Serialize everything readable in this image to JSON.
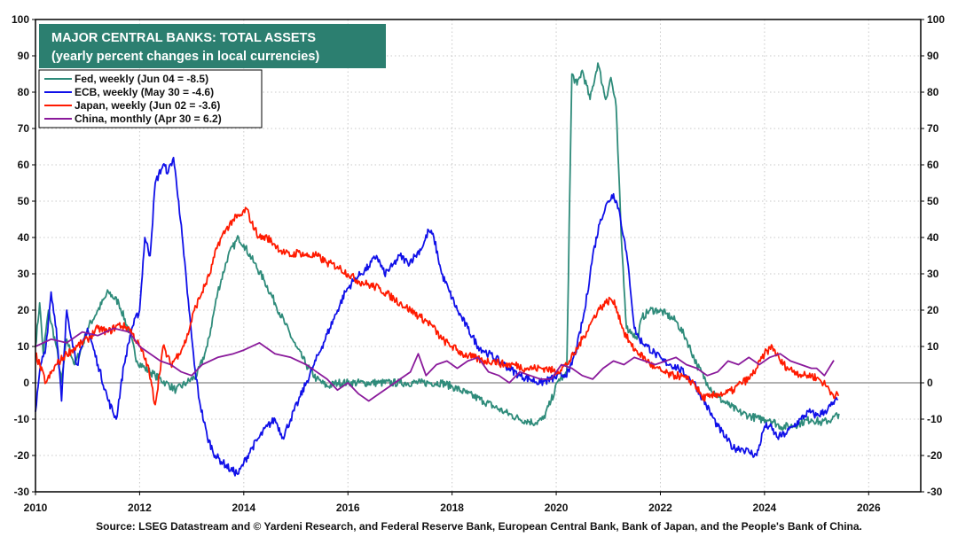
{
  "chart_data": {
    "type": "line",
    "title": "MAJOR CENTRAL BANKS: TOTAL ASSETS",
    "subtitle": "(yearly percent changes in local currencies)",
    "xlabel": "",
    "ylabel": "",
    "xlim": [
      2010,
      2027
    ],
    "ylim": [
      -30,
      100
    ],
    "x_ticks": [
      "2010",
      "2012",
      "2014",
      "2016",
      "2018",
      "2020",
      "2022",
      "2024",
      "2026"
    ],
    "y_ticks": [
      "-30",
      "-20",
      "-10",
      "0",
      "10",
      "20",
      "30",
      "40",
      "50",
      "60",
      "70",
      "80",
      "90",
      "100"
    ],
    "grid": true,
    "legend_position": "top-left",
    "source": "Source: LSEG Datastream and © Yardeni Research, and Federal Reserve Bank, European Central Bank, Bank of Japan, and the People's Bank of China.",
    "series": [
      {
        "name": "Fed, weekly (Jun 04 = -8.5)",
        "color": "#2e8b7a",
        "x": [
          2010.0,
          2010.08,
          2010.15,
          2010.25,
          2010.4,
          2010.5,
          2010.6,
          2010.75,
          2010.9,
          2011.0,
          2011.2,
          2011.4,
          2011.6,
          2011.8,
          2011.95,
          2012.1,
          2012.3,
          2012.5,
          2012.7,
          2012.9,
          2013.1,
          2013.3,
          2013.5,
          2013.7,
          2013.9,
          2014.0,
          2014.2,
          2014.4,
          2014.6,
          2014.8,
          2015.0,
          2015.2,
          2015.4,
          2015.6,
          2015.8,
          2016.0,
          2016.3,
          2016.6,
          2017.0,
          2017.4,
          2017.8,
          2018.0,
          2018.3,
          2018.6,
          2019.0,
          2019.3,
          2019.6,
          2019.75,
          2019.9,
          2020.05,
          2020.2,
          2020.3,
          2020.4,
          2020.5,
          2020.65,
          2020.8,
          2020.95,
          2021.05,
          2021.15,
          2021.25,
          2021.35,
          2021.45,
          2021.55,
          2021.65,
          2021.8,
          2021.95,
          2022.1,
          2022.3,
          2022.5,
          2022.7,
          2022.9,
          2023.1,
          2023.3,
          2023.5,
          2023.7,
          2023.9,
          2024.1,
          2024.3,
          2024.5,
          2024.7,
          2024.9,
          2025.1,
          2025.3,
          2025.43
        ],
        "values": [
          10,
          22,
          8,
          20,
          10,
          0,
          12,
          5,
          10,
          15,
          20,
          25,
          22,
          14,
          6,
          4,
          2,
          0,
          -2,
          0,
          2,
          10,
          25,
          35,
          40,
          38,
          33,
          28,
          22,
          16,
          10,
          5,
          1,
          -1,
          0,
          0,
          0,
          0,
          0,
          0,
          0,
          -1,
          -3,
          -5,
          -8,
          -10,
          -11,
          -10,
          -5,
          1,
          2,
          85,
          82,
          86,
          78,
          88,
          78,
          84,
          76,
          40,
          15,
          14,
          12,
          18,
          20,
          20,
          19,
          17,
          12,
          5,
          0,
          -4,
          -6,
          -8,
          -9,
          -10,
          -10,
          -12,
          -12,
          -11,
          -10,
          -11,
          -10,
          -8.5
        ]
      },
      {
        "name": "ECB, weekly (May 30 = -4.6)",
        "color": "#1010e8",
        "x": [
          2010.0,
          2010.1,
          2010.2,
          2010.3,
          2010.4,
          2010.5,
          2010.6,
          2010.7,
          2010.8,
          2010.9,
          2011.0,
          2011.2,
          2011.4,
          2011.55,
          2011.7,
          2011.85,
          2012.0,
          2012.1,
          2012.2,
          2012.3,
          2012.45,
          2012.55,
          2012.65,
          2012.75,
          2012.85,
          2012.95,
          2013.05,
          2013.15,
          2013.3,
          2013.45,
          2013.6,
          2013.75,
          2013.9,
          2014.0,
          2014.15,
          2014.3,
          2014.45,
          2014.6,
          2014.75,
          2014.9,
          2015.05,
          2015.2,
          2015.35,
          2015.5,
          2015.65,
          2015.8,
          2015.95,
          2016.1,
          2016.25,
          2016.4,
          2016.55,
          2016.7,
          2016.85,
          2017.0,
          2017.15,
          2017.3,
          2017.45,
          2017.55,
          2017.65,
          2017.8,
          2017.95,
          2018.1,
          2018.3,
          2018.5,
          2018.7,
          2018.9,
          2019.1,
          2019.3,
          2019.5,
          2019.7,
          2019.9,
          2020.1,
          2020.25,
          2020.4,
          2020.55,
          2020.7,
          2020.85,
          2021.0,
          2021.1,
          2021.2,
          2021.3,
          2021.4,
          2021.5,
          2021.6,
          2021.75,
          2021.9,
          2022.05,
          2022.2,
          2022.35,
          2022.5,
          2022.65,
          2022.8,
          2022.95,
          2023.1,
          2023.25,
          2023.4,
          2023.55,
          2023.7,
          2023.85,
          2024.0,
          2024.1,
          2024.25,
          2024.4,
          2024.55,
          2024.7,
          2024.85,
          2025.0,
          2025.15,
          2025.3,
          2025.41
        ],
        "values": [
          -8,
          5,
          10,
          25,
          15,
          -5,
          20,
          12,
          5,
          10,
          15,
          5,
          -5,
          -10,
          5,
          15,
          20,
          40,
          35,
          55,
          60,
          58,
          62,
          50,
          35,
          20,
          5,
          -5,
          -15,
          -20,
          -22,
          -24,
          -25,
          -22,
          -18,
          -15,
          -12,
          -10,
          -15,
          -10,
          -5,
          0,
          5,
          10,
          15,
          20,
          25,
          28,
          30,
          32,
          35,
          30,
          32,
          35,
          33,
          35,
          38,
          42,
          40,
          30,
          25,
          20,
          15,
          10,
          8,
          6,
          4,
          2,
          1,
          0,
          1,
          2,
          3,
          10,
          20,
          35,
          45,
          50,
          52,
          48,
          40,
          30,
          15,
          12,
          10,
          8,
          6,
          5,
          4,
          2,
          0,
          -4,
          -8,
          -12,
          -15,
          -18,
          -18,
          -19,
          -20,
          -12,
          -12,
          -15,
          -14,
          -12,
          -10,
          -8,
          -9,
          -8,
          -6,
          -4.6
        ]
      },
      {
        "name": "Japan, weekly (Jun 02 = -3.6)",
        "color": "#ff1a00",
        "x": [
          2010.0,
          2010.2,
          2010.4,
          2010.6,
          2010.8,
          2011.0,
          2011.2,
          2011.4,
          2011.6,
          2011.8,
          2012.0,
          2012.15,
          2012.3,
          2012.45,
          2012.6,
          2012.75,
          2012.9,
          2013.05,
          2013.2,
          2013.35,
          2013.5,
          2013.65,
          2013.8,
          2013.95,
          2014.05,
          2014.15,
          2014.3,
          2014.45,
          2014.6,
          2014.75,
          2014.9,
          2015.05,
          2015.2,
          2015.4,
          2015.6,
          2015.8,
          2016.0,
          2016.2,
          2016.4,
          2016.6,
          2016.8,
          2017.0,
          2017.2,
          2017.4,
          2017.6,
          2017.8,
          2018.0,
          2018.2,
          2018.4,
          2018.6,
          2018.8,
          2019.0,
          2019.2,
          2019.4,
          2019.6,
          2019.8,
          2020.0,
          2020.2,
          2020.35,
          2020.5,
          2020.65,
          2020.8,
          2020.95,
          2021.05,
          2021.15,
          2021.3,
          2021.45,
          2021.6,
          2021.75,
          2021.9,
          2022.05,
          2022.2,
          2022.35,
          2022.5,
          2022.65,
          2022.8,
          2022.95,
          2023.1,
          2023.25,
          2023.4,
          2023.55,
          2023.7,
          2023.85,
          2024.0,
          2024.15,
          2024.3,
          2024.45,
          2024.6,
          2024.75,
          2024.9,
          2025.05,
          2025.2,
          2025.3,
          2025.42
        ],
        "values": [
          8,
          0,
          5,
          8,
          10,
          12,
          15,
          14,
          16,
          15,
          10,
          5,
          -6,
          10,
          5,
          8,
          12,
          20,
          25,
          30,
          38,
          42,
          45,
          46,
          48,
          44,
          40,
          40,
          38,
          36,
          35,
          36,
          35,
          35,
          33,
          32,
          30,
          28,
          27,
          26,
          24,
          22,
          20,
          18,
          16,
          12,
          10,
          8,
          7,
          6,
          6,
          5,
          5,
          4,
          4,
          4,
          3,
          5,
          8,
          12,
          16,
          20,
          22,
          23,
          21,
          14,
          10,
          8,
          6,
          4,
          3,
          2,
          2,
          1,
          0,
          -4,
          -4,
          -3,
          -3,
          -2,
          0,
          1,
          4,
          8,
          10,
          6,
          4,
          3,
          2,
          2,
          1,
          -1,
          -3,
          -3.6
        ]
      },
      {
        "name": "China, monthly (Apr 30 = 6.2)",
        "color": "#8a1a9b",
        "x": [
          2010.0,
          2010.3,
          2010.6,
          2010.9,
          2011.2,
          2011.5,
          2011.8,
          2012.0,
          2012.2,
          2012.4,
          2012.6,
          2012.8,
          2013.0,
          2013.2,
          2013.5,
          2013.8,
          2014.0,
          2014.3,
          2014.6,
          2014.9,
          2015.2,
          2015.4,
          2015.6,
          2015.8,
          2016.0,
          2016.2,
          2016.4,
          2016.6,
          2016.8,
          2017.0,
          2017.2,
          2017.35,
          2017.5,
          2017.7,
          2017.9,
          2018.1,
          2018.3,
          2018.5,
          2018.7,
          2018.9,
          2019.1,
          2019.3,
          2019.5,
          2019.7,
          2019.9,
          2020.1,
          2020.3,
          2020.5,
          2020.7,
          2020.9,
          2021.1,
          2021.3,
          2021.5,
          2021.7,
          2021.9,
          2022.1,
          2022.3,
          2022.5,
          2022.7,
          2022.9,
          2023.1,
          2023.3,
          2023.5,
          2023.7,
          2023.9,
          2024.1,
          2024.3,
          2024.5,
          2024.7,
          2024.9,
          2025.0,
          2025.15,
          2025.33
        ],
        "values": [
          10,
          12,
          11,
          14,
          13,
          15,
          14,
          10,
          8,
          6,
          5,
          3,
          2,
          5,
          7,
          8,
          9,
          11,
          8,
          7,
          5,
          3,
          1,
          -2,
          0,
          -3,
          -5,
          -3,
          -1,
          1,
          3,
          8,
          2,
          5,
          6,
          4,
          6,
          7,
          3,
          2,
          0,
          3,
          2,
          1,
          1,
          5,
          4,
          2,
          1,
          4,
          6,
          5,
          7,
          6,
          5,
          6,
          7,
          5,
          4,
          2,
          3,
          6,
          5,
          7,
          5,
          7,
          8,
          6,
          5,
          4,
          4,
          2,
          6.2
        ]
      }
    ]
  }
}
